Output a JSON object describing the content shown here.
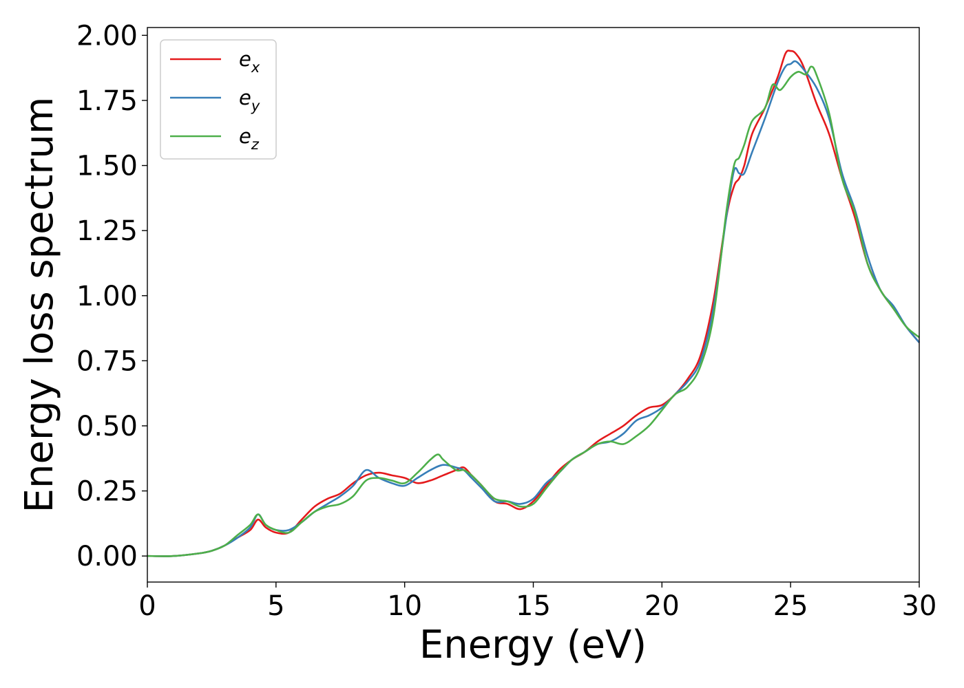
{
  "chart_data": {
    "type": "line",
    "title": "",
    "xlabel": "Energy (eV)",
    "ylabel": "Energy loss spectrum",
    "xlim": [
      0,
      30
    ],
    "ylim": [
      -0.1,
      2.03
    ],
    "xticks": [
      0,
      5,
      10,
      15,
      20,
      25,
      30
    ],
    "xtick_labels": [
      "0",
      "5",
      "10",
      "15",
      "20",
      "25",
      "30"
    ],
    "yticks": [
      0.0,
      0.25,
      0.5,
      0.75,
      1.0,
      1.25,
      1.5,
      1.75,
      2.0
    ],
    "ytick_labels": [
      "0.00",
      "0.25",
      "0.50",
      "0.75",
      "1.00",
      "1.25",
      "1.50",
      "1.75",
      "2.00"
    ],
    "grid": false,
    "legend_position": "top-left",
    "series": [
      {
        "name": "e",
        "subscript": "x",
        "color": "#e41a1c",
        "x": [
          0,
          1,
          2,
          2.5,
          3,
          3.5,
          4,
          4.3,
          4.6,
          5,
          5.5,
          6,
          6.5,
          7,
          7.5,
          8,
          8.5,
          9,
          9.5,
          10,
          10.5,
          11,
          11.5,
          12,
          12.3,
          12.6,
          13,
          13.5,
          14,
          14.5,
          15,
          15.5,
          16,
          16.5,
          17,
          17.5,
          18,
          18.5,
          19,
          19.5,
          20,
          20.5,
          21,
          21.5,
          22,
          22.5,
          22.8,
          23,
          23.2,
          23.5,
          24,
          24.5,
          24.8,
          25,
          25.2,
          25.5,
          26,
          26.5,
          27,
          27.5,
          28,
          28.5,
          29,
          29.5,
          30
        ],
        "y": [
          0.0,
          0.0,
          0.01,
          0.02,
          0.04,
          0.07,
          0.1,
          0.14,
          0.11,
          0.09,
          0.09,
          0.14,
          0.19,
          0.22,
          0.24,
          0.28,
          0.31,
          0.32,
          0.31,
          0.3,
          0.28,
          0.29,
          0.31,
          0.33,
          0.34,
          0.31,
          0.27,
          0.21,
          0.2,
          0.18,
          0.21,
          0.27,
          0.33,
          0.37,
          0.4,
          0.44,
          0.47,
          0.5,
          0.54,
          0.57,
          0.58,
          0.62,
          0.68,
          0.77,
          0.98,
          1.3,
          1.42,
          1.45,
          1.5,
          1.62,
          1.72,
          1.84,
          1.93,
          1.94,
          1.93,
          1.88,
          1.74,
          1.62,
          1.45,
          1.3,
          1.12,
          1.02,
          0.95,
          0.88,
          0.82
        ]
      },
      {
        "name": "e",
        "subscript": "y",
        "color": "#377eb8",
        "x": [
          0,
          1,
          2,
          2.5,
          3,
          3.5,
          4,
          4.3,
          4.6,
          5,
          5.5,
          6,
          6.5,
          7,
          7.5,
          8,
          8.5,
          9,
          9.5,
          10,
          10.5,
          11,
          11.5,
          12,
          12.3,
          12.6,
          13,
          13.5,
          14,
          14.5,
          15,
          15.5,
          16,
          16.5,
          17,
          17.5,
          18,
          18.5,
          19,
          19.5,
          20,
          20.5,
          21,
          21.5,
          22,
          22.5,
          22.8,
          23,
          23.2,
          23.5,
          24,
          24.5,
          24.8,
          25,
          25.2,
          25.5,
          26,
          26.5,
          27,
          27.5,
          28,
          28.5,
          29,
          29.5,
          30
        ],
        "y": [
          0.0,
          0.0,
          0.01,
          0.02,
          0.04,
          0.07,
          0.11,
          0.16,
          0.12,
          0.1,
          0.1,
          0.13,
          0.17,
          0.2,
          0.23,
          0.27,
          0.33,
          0.3,
          0.28,
          0.27,
          0.3,
          0.33,
          0.35,
          0.34,
          0.33,
          0.3,
          0.26,
          0.21,
          0.21,
          0.2,
          0.22,
          0.28,
          0.32,
          0.37,
          0.4,
          0.43,
          0.44,
          0.47,
          0.52,
          0.54,
          0.57,
          0.62,
          0.67,
          0.75,
          0.95,
          1.3,
          1.48,
          1.47,
          1.47,
          1.55,
          1.68,
          1.82,
          1.88,
          1.89,
          1.9,
          1.87,
          1.8,
          1.68,
          1.47,
          1.33,
          1.15,
          1.02,
          0.96,
          0.88,
          0.82
        ]
      },
      {
        "name": "e",
        "subscript": "z",
        "color": "#4daf4a",
        "x": [
          0,
          1,
          2,
          2.5,
          3,
          3.5,
          4,
          4.3,
          4.6,
          5,
          5.5,
          6,
          6.5,
          7,
          7.5,
          8,
          8.5,
          9,
          9.5,
          10,
          10.5,
          11,
          11.3,
          11.5,
          12,
          12.3,
          12.6,
          13,
          13.5,
          14,
          14.5,
          15,
          15.5,
          16,
          16.5,
          17,
          17.5,
          18,
          18.5,
          19,
          19.5,
          20,
          20.5,
          21,
          21.5,
          22,
          22.5,
          22.8,
          23,
          23.2,
          23.5,
          24,
          24.3,
          24.6,
          25,
          25.3,
          25.6,
          25.8,
          26,
          26.5,
          27,
          27.5,
          28,
          28.5,
          29,
          29.5,
          30
        ],
        "y": [
          0.0,
          0.0,
          0.01,
          0.02,
          0.04,
          0.08,
          0.12,
          0.16,
          0.12,
          0.1,
          0.09,
          0.13,
          0.17,
          0.19,
          0.2,
          0.23,
          0.29,
          0.3,
          0.29,
          0.28,
          0.32,
          0.37,
          0.39,
          0.37,
          0.33,
          0.33,
          0.31,
          0.27,
          0.22,
          0.21,
          0.19,
          0.2,
          0.26,
          0.32,
          0.37,
          0.4,
          0.43,
          0.44,
          0.43,
          0.46,
          0.5,
          0.56,
          0.62,
          0.65,
          0.73,
          0.92,
          1.32,
          1.5,
          1.53,
          1.58,
          1.67,
          1.72,
          1.81,
          1.79,
          1.84,
          1.86,
          1.85,
          1.88,
          1.85,
          1.7,
          1.45,
          1.32,
          1.12,
          1.02,
          0.95,
          0.88,
          0.84
        ]
      }
    ]
  }
}
